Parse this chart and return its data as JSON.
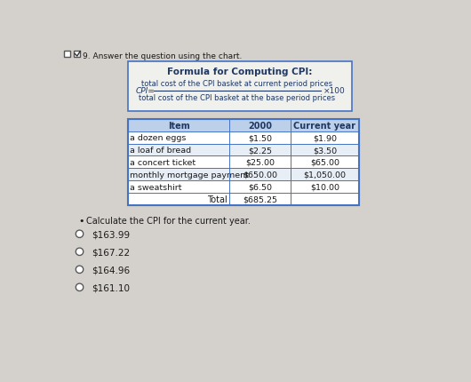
{
  "question_number": "9. Answer the question using the chart.",
  "formula_title": "Formula for Computing CPI:",
  "formula_numerator": "total cost of the CPI basket at current period prices",
  "formula_denominator": "total cost of the CPI basket at the base period prices",
  "formula_multiplier": "×100",
  "table_headers": [
    "Item",
    "2000",
    "Current year"
  ],
  "table_rows": [
    [
      "a dozen eggs",
      "$1.50",
      "$1.90"
    ],
    [
      "a loaf of bread",
      "$2.25",
      "$3.50"
    ],
    [
      "a concert ticket",
      "$25.00",
      "$65.00"
    ],
    [
      "monthly mortgage payment",
      "$650.00",
      "$1,050.00"
    ],
    [
      "a sweatshirt",
      "$6.50",
      "$10.00"
    ]
  ],
  "total_label": "Total",
  "total_value": "$685.25",
  "sub_question": "Calculate the CPI for the current year.",
  "choices": [
    "$163.99",
    "$167.22",
    "$164.96",
    "$161.10"
  ],
  "bg_color": "#d4d0cb",
  "box_border_color": "#4472c4",
  "table_header_bg": "#bdd0e9",
  "table_bg": "#e8e8e4",
  "table_border_color": "#4472c4",
  "text_color_dark": "#1a1a1a",
  "formula_color": "#1f3864",
  "header_text_color": "#1f3864",
  "checkbox_color": "#555555",
  "formula_box_bg": "#f0f0ec"
}
